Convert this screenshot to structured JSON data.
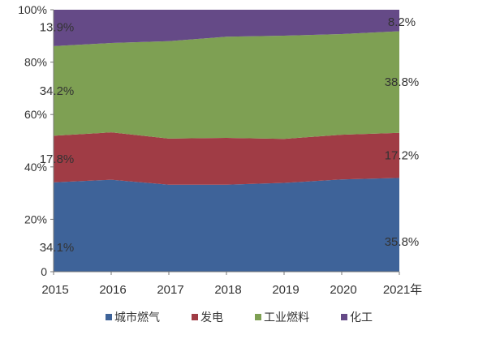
{
  "chart_data": {
    "type": "area",
    "stacked": true,
    "title": "",
    "xlabel": "",
    "ylabel": "",
    "categories": [
      "2015",
      "2016",
      "2017",
      "2018",
      "2019",
      "2020",
      "2021年"
    ],
    "ylim": [
      0,
      100
    ],
    "yticks": [
      "0",
      "20%",
      "40%",
      "60%",
      "80%",
      "100%"
    ],
    "legend_position": "bottom",
    "series": [
      {
        "name": "城市燃气",
        "color": "#3E6399",
        "values": [
          34.1,
          35.1,
          33.2,
          33.2,
          33.9,
          35.2,
          35.8
        ],
        "labels": [
          "34.1%",
          "35.8%"
        ]
      },
      {
        "name": "发电",
        "color": "#A03C45",
        "values": [
          17.8,
          18.1,
          17.6,
          17.9,
          16.8,
          17.1,
          17.2
        ],
        "labels": [
          "17.8%",
          "17.2%"
        ]
      },
      {
        "name": "工业燃料",
        "color": "#7EA053",
        "values": [
          34.2,
          34.1,
          37.2,
          38.6,
          39.4,
          38.4,
          38.8
        ],
        "labels": [
          "34.2%",
          "38.8%"
        ]
      },
      {
        "name": "化工",
        "color": "#654A87",
        "values": [
          13.9,
          12.7,
          12.0,
          10.3,
          9.9,
          9.3,
          8.2
        ],
        "labels": [
          "13.9%",
          "8.2%"
        ]
      }
    ]
  }
}
